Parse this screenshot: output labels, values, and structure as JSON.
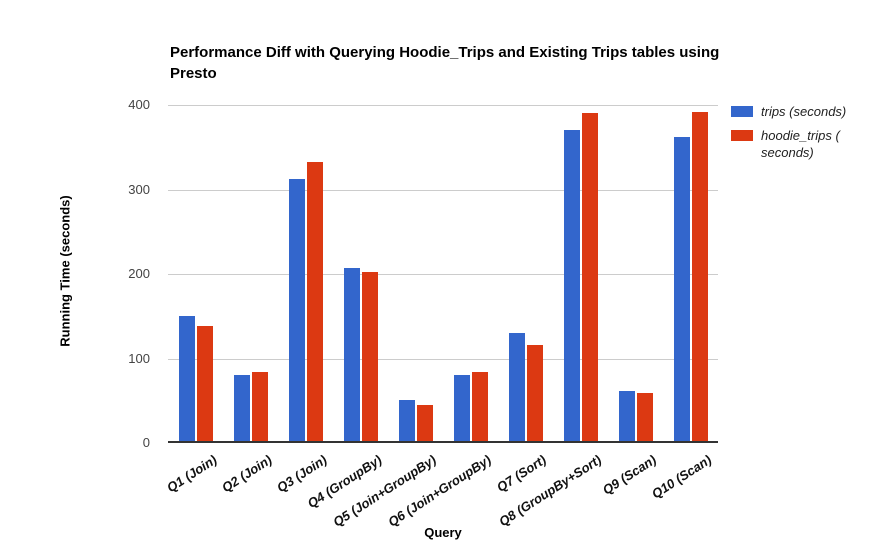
{
  "chart": {
    "title": "Performance Diff with Querying Hoodie_Trips and Existing Trips tables using Presto",
    "x_axis_title": "Query",
    "y_axis_title": "Running Time (seconds)"
  },
  "legend": {
    "items": [
      {
        "label": "trips (seconds)",
        "color": "#3366CC"
      },
      {
        "label": "hoodie_trips ( seconds)",
        "color": "#DC3912"
      }
    ]
  },
  "colors": {
    "series_blue": "#3366CC",
    "series_red": "#DC3912",
    "gridline": "#cccccc",
    "axis_line": "#333333",
    "tick_text": "#444444"
  },
  "chart_data": {
    "type": "bar",
    "title": "Performance Diff with Querying Hoodie_Trips and Existing Trips tables using Presto",
    "xlabel": "Query",
    "ylabel": "Running Time (seconds)",
    "categories": [
      "Q1 (Join)",
      "Q2 (Join)",
      "Q3 (Join)",
      "Q4 (GroupBy)",
      "Q5 (Join+GroupBy)",
      "Q6 (Join+GroupBy)",
      "Q7 (Sort)",
      "Q8 (GroupBy+Sort)",
      "Q9 (Scan)",
      "Q10 (Scan)"
    ],
    "series": [
      {
        "name": "trips (seconds)",
        "color": "#3366CC",
        "values": [
          150,
          81,
          313,
          207,
          51,
          81,
          130,
          371,
          61,
          362
        ]
      },
      {
        "name": "hoodie_trips ( seconds)",
        "color": "#DC3912",
        "values": [
          138,
          84,
          332,
          202,
          45,
          84,
          116,
          390,
          59,
          392
        ]
      }
    ],
    "ylim": [
      0,
      400
    ],
    "yticks": [
      0,
      100,
      200,
      300,
      400
    ],
    "grid": true,
    "legend_position": "right"
  }
}
